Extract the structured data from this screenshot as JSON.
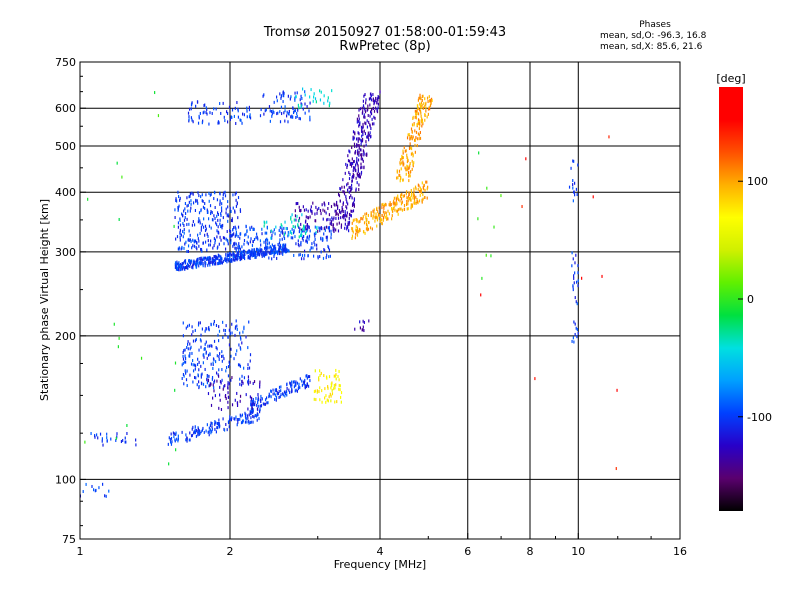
{
  "chart_data": {
    "type": "scatter",
    "title_line1": "Tromsø 20150927 01:58:00-01:59:43",
    "title_line2": "RwPretec (8p)",
    "xlabel": "Frequency [MHz]",
    "ylabel": "Stationary phase Virtual Height [km]",
    "x_scale": "log",
    "y_scale": "log",
    "xlim": [
      1,
      16
    ],
    "ylim": [
      75,
      750
    ],
    "x_ticks": [
      1,
      2,
      4,
      6,
      8,
      10,
      16
    ],
    "y_ticks": [
      75,
      100,
      200,
      300,
      400,
      500,
      600,
      750
    ],
    "x_gridlines": [
      2,
      4,
      6,
      8,
      10
    ],
    "y_gridlines": [
      100,
      200,
      300,
      400,
      500,
      600
    ],
    "phases": {
      "title": "Phases",
      "line_o": "mean, sd,O: -96.3, 16.8",
      "line_x": "mean, sd,X:  85.6, 21.6"
    },
    "colorbar": {
      "label": "[deg]",
      "range": [
        -180,
        180
      ],
      "ticks": [
        100,
        0,
        -100
      ],
      "colors": [
        "#000000",
        "#5a006e",
        "#2800c8",
        "#0040ff",
        "#00a0ff",
        "#00e0e0",
        "#00e040",
        "#60f000",
        "#d0f000",
        "#ffff00",
        "#ffb000",
        "#ff5000",
        "#ff0000",
        "#ff0000"
      ]
    },
    "series": [
      {
        "color_deg": -100,
        "clusters": [
          {
            "f": [
              1.55,
              2.6
            ],
            "h": [
              275,
              310
            ],
            "n": 420,
            "shape": "band_up"
          },
          {
            "f": [
              1.55,
              2.1
            ],
            "h": [
              300,
              400
            ],
            "n": 260
          },
          {
            "f": [
              2.0,
              3.2
            ],
            "h": [
              290,
              340
            ],
            "n": 240
          },
          {
            "f": [
              1.65,
              2.2
            ],
            "h": [
              555,
              620
            ],
            "n": 70
          },
          {
            "f": [
              2.3,
              2.9
            ],
            "h": [
              560,
              650
            ],
            "n": 80
          },
          {
            "f": [
              1.6,
              2.2
            ],
            "h": [
              155,
              215
            ],
            "n": 220
          },
          {
            "f": [
              1.5,
              2.3
            ],
            "h": [
              118,
              140
            ],
            "n": 150,
            "shape": "band_up"
          },
          {
            "f": [
              2.2,
              2.9
            ],
            "h": [
              140,
              165
            ],
            "n": 130,
            "shape": "band_up"
          },
          {
            "f": [
              1.05,
              1.3
            ],
            "h": [
              118,
              125
            ],
            "n": 25
          },
          {
            "f": [
              9.7,
              10.0
            ],
            "h": [
              190,
              300
            ],
            "n": 30
          },
          {
            "f": [
              9.6,
              10.0
            ],
            "h": [
              370,
              480
            ],
            "n": 15
          },
          {
            "f": [
              1.0,
              1.15
            ],
            "h": [
              92,
              100
            ],
            "n": 12
          }
        ]
      },
      {
        "color_deg": -130,
        "clusters": [
          {
            "f": [
              3.2,
              4.0
            ],
            "h": [
              330,
              650
            ],
            "n": 320,
            "shape": "band_vert"
          },
          {
            "f": [
              2.7,
              3.3
            ],
            "h": [
              330,
              380
            ],
            "n": 80
          },
          {
            "f": [
              1.8,
              2.3
            ],
            "h": [
              140,
              165
            ],
            "n": 60
          },
          {
            "f": [
              3.55,
              3.8
            ],
            "h": [
              205,
              215
            ],
            "n": 10
          }
        ]
      },
      {
        "color_deg": 100,
        "clusters": [
          {
            "f": [
              3.5,
              5.0
            ],
            "h": [
              320,
              420
            ],
            "n": 230,
            "shape": "band_up"
          },
          {
            "f": [
              4.3,
              5.1
            ],
            "h": [
              420,
              640
            ],
            "n": 180,
            "shape": "band_vert"
          }
        ]
      },
      {
        "color_deg": 70,
        "clusters": [
          {
            "f": [
              2.95,
              3.35
            ],
            "h": [
              145,
              170
            ],
            "n": 60
          }
        ]
      },
      {
        "color_deg": -40,
        "clusters": [
          {
            "f": [
              2.3,
              3.0
            ],
            "h": [
              320,
              360
            ],
            "n": 40
          },
          {
            "f": [
              2.7,
              3.2
            ],
            "h": [
              600,
              660
            ],
            "n": 25
          }
        ]
      },
      {
        "color_deg": 0,
        "clusters": [
          {
            "f": [
              1.0,
              1.6
            ],
            "h": [
              90,
              700
            ],
            "n": 18
          },
          {
            "f": [
              6.2,
              7.0
            ],
            "h": [
              240,
              520
            ],
            "n": 8
          }
        ]
      },
      {
        "color_deg": 150,
        "clusters": [
          {
            "f": [
              6.3,
              12.0
            ],
            "h": [
              100,
              600
            ],
            "n": 10
          }
        ]
      }
    ]
  }
}
